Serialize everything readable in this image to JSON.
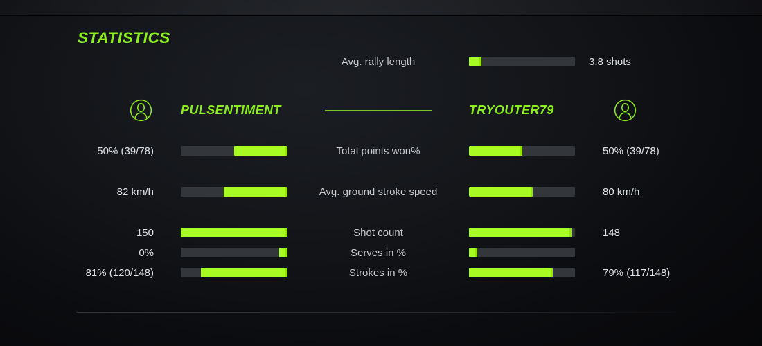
{
  "colors": {
    "accent-green": "#8bed1e",
    "bar-green": "#a9fb24",
    "bar-green-cap": "#96e603",
    "bar-track": "#33363b",
    "divider-green": "#7fc32c",
    "label-text": "#c7c9cd",
    "value-text": "#dde0e4"
  },
  "header": {
    "title": "STATISTICS"
  },
  "top_stat": {
    "label": "Avg. rally length",
    "value": "3.8 shots",
    "fill": 0.12
  },
  "players": {
    "left": {
      "name": "PULSENTIMENT",
      "icon": "user-icon"
    },
    "right": {
      "name": "TRYOUTER79",
      "icon": "user-icon"
    }
  },
  "stats": [
    {
      "label": "Total points won%",
      "left_value": "50% (39/78)",
      "left_fill": 0.5,
      "right_fill": 0.5,
      "right_value": "50% (39/78)"
    },
    {
      "label": "Avg. ground stroke speed",
      "left_value": "82 km/h",
      "left_fill": 0.6,
      "right_fill": 0.6,
      "right_value": "80 km/h"
    },
    {
      "label": "Shot count",
      "left_value": "150",
      "left_fill": 1.0,
      "right_fill": 0.97,
      "right_value": "148"
    },
    {
      "label": "Serves in %",
      "left_value": "0%",
      "left_fill": 0.08,
      "right_fill": 0.08,
      "right_value": ""
    },
    {
      "label": "Strokes in %",
      "left_value": "81% (120/148)",
      "left_fill": 0.81,
      "right_fill": 0.79,
      "right_value": "79% (117/148)"
    }
  ]
}
